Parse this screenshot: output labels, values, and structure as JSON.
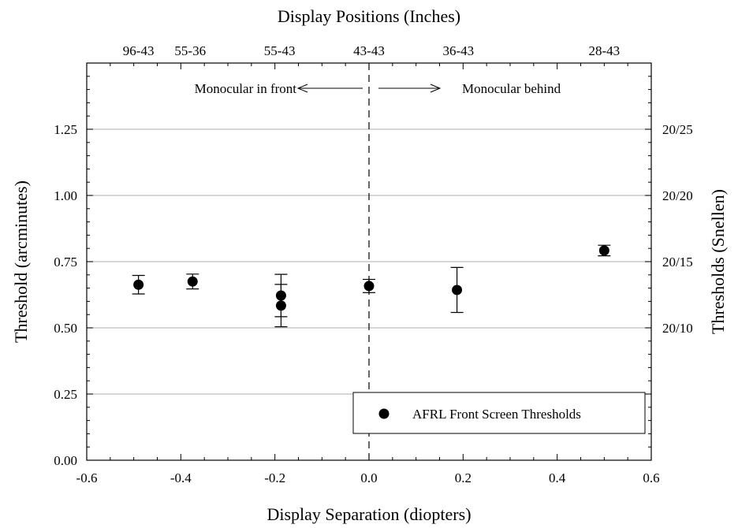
{
  "chart_data": {
    "type": "scatter",
    "xlabel": "Display Separation (diopters)",
    "ylabel": "Threshold (arcminutes)",
    "top_axis_title": "Display Positions (Inches)",
    "right_axis_title": "Thresholds (Snellen)",
    "xlim": [
      -0.6,
      0.6
    ],
    "ylim": [
      0.0,
      1.5
    ],
    "x_ticks": [
      -0.6,
      -0.4,
      -0.2,
      0.0,
      0.2,
      0.4,
      0.6
    ],
    "x_tick_labels": [
      "-0.6",
      "-0.4",
      "-0.2",
      "0.0",
      "0.2",
      "0.4",
      "0.6"
    ],
    "y_ticks": [
      0.0,
      0.25,
      0.5,
      0.75,
      1.0,
      1.25
    ],
    "y_tick_labels": [
      "0.00",
      "0.25",
      "0.50",
      "0.75",
      "1.00",
      "1.25"
    ],
    "gridlines_y": [
      0.25,
      0.5,
      0.75,
      1.0,
      1.25
    ],
    "grid": "horizontal",
    "top_ticks": [
      {
        "x": -0.49,
        "label": "96-43"
      },
      {
        "x": -0.38,
        "label": "55-36"
      },
      {
        "x": -0.19,
        "label": "55-43"
      },
      {
        "x": 0.0,
        "label": "43-43"
      },
      {
        "x": 0.19,
        "label": "36-43"
      },
      {
        "x": 0.5,
        "label": "28-43"
      }
    ],
    "right_ticks": [
      {
        "y": 1.25,
        "label": "20/25"
      },
      {
        "y": 1.0,
        "label": "20/20"
      },
      {
        "y": 0.75,
        "label": "20/15"
      },
      {
        "y": 0.5,
        "label": "20/10"
      }
    ],
    "annotations": {
      "left_text": "Monocular in front",
      "right_text": "Monocular behind"
    },
    "vertical_reference_x": 0.0,
    "legend": {
      "position": "bottom-right",
      "label": "AFRL Front Screen Thresholds"
    },
    "series": [
      {
        "points": [
          {
            "x": -0.49,
            "y": 0.663,
            "err": 0.035
          },
          {
            "x": -0.375,
            "y": 0.675,
            "err": 0.028
          },
          {
            "x": -0.187,
            "y": 0.622,
            "err": 0.08
          },
          {
            "x": -0.187,
            "y": 0.584,
            "err": 0.08
          },
          {
            "x": 0.0,
            "y": 0.658,
            "err": 0.025
          },
          {
            "x": 0.187,
            "y": 0.643,
            "err": 0.085
          },
          {
            "x": 0.5,
            "y": 0.792,
            "err": 0.02
          }
        ]
      }
    ]
  }
}
